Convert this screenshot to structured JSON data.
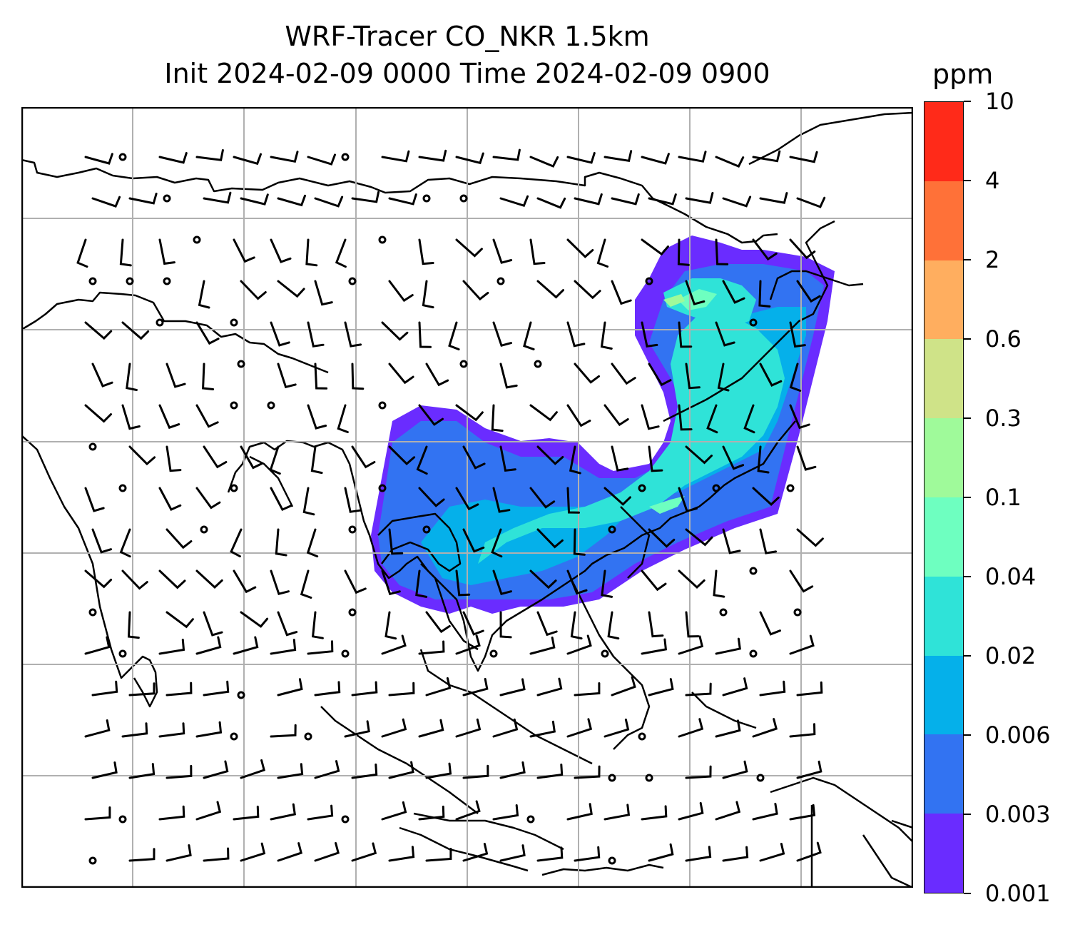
{
  "title": {
    "line1": "WRF-Tracer CO_NKR 1.5km",
    "line2": "Init 2024-02-09 0000 Time 2024-02-09 0900"
  },
  "colorbar": {
    "unit": "ppm",
    "levels": [
      "0.001",
      "0.003",
      "0.006",
      "0.02",
      "0.04",
      "0.1",
      "0.3",
      "0.6",
      "2",
      "4",
      "10"
    ],
    "colors": [
      "#6a2cff",
      "#3273f2",
      "#05b0ea",
      "#2fe3d8",
      "#6effc0",
      "#9ffa9a",
      "#cfe388",
      "#ffae5f",
      "#ff7138",
      "#ff2a19"
    ]
  },
  "map": {
    "gridlines": true,
    "coastline_color": "#000000",
    "gridline_color": "#b0b0b0",
    "wind_barbs": "black",
    "calm_markers": "circle"
  }
}
